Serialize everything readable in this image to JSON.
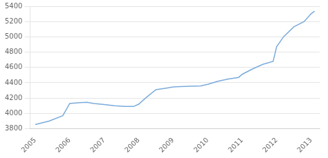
{
  "chart_data": {
    "type": "line",
    "x": [
      2005,
      2005.4,
      2005.8,
      2006,
      2006.3,
      2006.5,
      2006.7,
      2007,
      2007.3,
      2007.6,
      2007.85,
      2008,
      2008.2,
      2008.5,
      2008.8,
      2009,
      2009.2,
      2009.5,
      2009.8,
      2010,
      2010.3,
      2010.6,
      2010.9,
      2011,
      2011.3,
      2011.6,
      2011.9,
      2012,
      2012.2,
      2012.5,
      2012.8,
      2013,
      2013.1
    ],
    "values": [
      3855,
      3900,
      3970,
      4130,
      4140,
      4145,
      4130,
      4115,
      4100,
      4090,
      4090,
      4120,
      4200,
      4310,
      4330,
      4345,
      4350,
      4355,
      4360,
      4380,
      4420,
      4450,
      4470,
      4510,
      4580,
      4640,
      4680,
      4870,
      5000,
      5130,
      5200,
      5300,
      5335
    ],
    "color": "#7aabdb",
    "xlim": [
      2004.85,
      2013.25
    ],
    "xticks": [
      2005,
      2006,
      2007,
      2008,
      2009,
      2010,
      2011,
      2012,
      2013
    ],
    "ylim": [
      3800,
      5400
    ],
    "yticks": [
      3800,
      4000,
      4200,
      4400,
      4600,
      4800,
      5000,
      5200,
      5400
    ],
    "grid": "y"
  }
}
